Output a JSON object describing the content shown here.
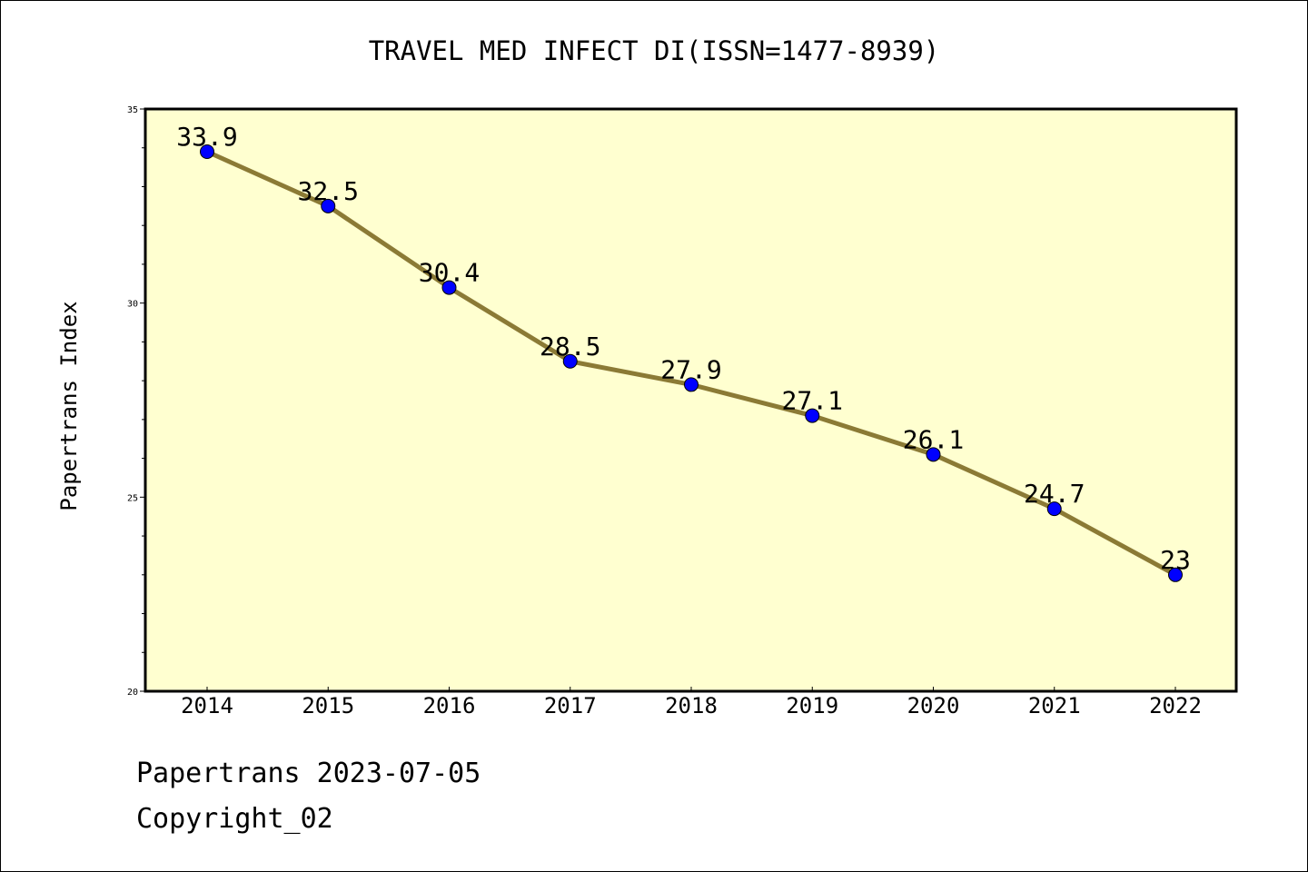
{
  "chart_data": {
    "type": "line",
    "title": "TRAVEL MED INFECT DI(ISSN=1477-8939)",
    "xlabel": "",
    "ylabel": "Papertrans Index",
    "categories": [
      "2014",
      "2015",
      "2016",
      "2017",
      "2018",
      "2019",
      "2020",
      "2021",
      "2022"
    ],
    "values": [
      33.9,
      32.5,
      30.4,
      28.5,
      27.9,
      27.1,
      26.1,
      24.7,
      23
    ],
    "data_labels": [
      "33.9",
      "32.5",
      "30.4",
      "28.5",
      "27.9",
      "27.1",
      "26.1",
      "24.7",
      "23"
    ],
    "ylim": [
      20,
      35
    ],
    "yticks": [
      "20",
      "25",
      "30",
      "35"
    ],
    "grid": false,
    "legend": "none",
    "colors": {
      "plot_background": "#ffffd0",
      "line": "#8b7a35",
      "marker": "#0000ff"
    }
  },
  "footer": {
    "source": "Papertrans 2023-07-05",
    "copyright": "Copyright_02"
  }
}
